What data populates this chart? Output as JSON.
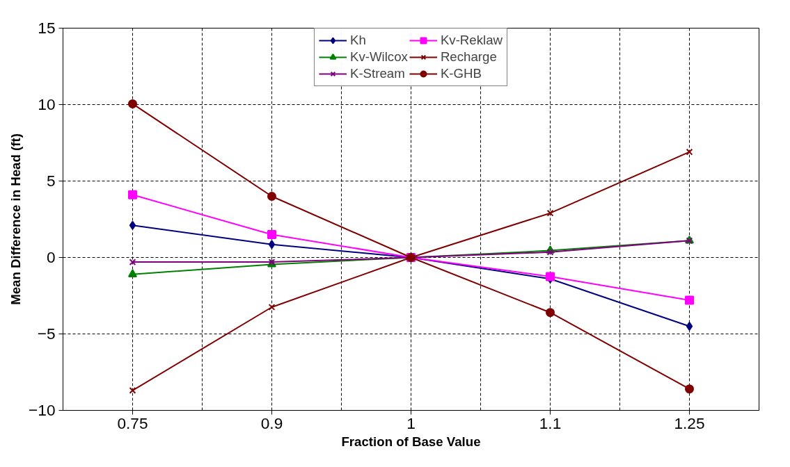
{
  "chart_data": {
    "type": "line",
    "xlabel": "Fraction of Base Value",
    "ylabel": "Mean Difference in Head (ft)",
    "categories": [
      "0.75",
      "0.9",
      "1",
      "1.1",
      "1.25"
    ],
    "ylim": [
      -10,
      15
    ],
    "yticks": [
      -10,
      -5,
      0,
      5,
      10,
      15
    ],
    "grid": true,
    "legend": "top",
    "series": [
      {
        "name": "Kh",
        "color": "#000080",
        "marker": "diamond",
        "values": [
          2.1,
          0.85,
          0,
          -1.4,
          -4.5
        ]
      },
      {
        "name": "Kv-Reklaw",
        "color": "#ff00ff",
        "marker": "square",
        "values": [
          4.1,
          1.5,
          0,
          -1.25,
          -2.8
        ]
      },
      {
        "name": "Kv-Wilcox",
        "color": "#008000",
        "marker": "triangle",
        "values": [
          -1.1,
          -0.45,
          0,
          0.45,
          1.1
        ]
      },
      {
        "name": "Recharge",
        "color": "#800000",
        "marker": "cross",
        "values": [
          -8.7,
          -3.25,
          0,
          2.9,
          6.9
        ]
      },
      {
        "name": "K-Stream",
        "color": "#800080",
        "marker": "cross",
        "values": [
          -0.3,
          -0.3,
          0,
          0.35,
          1.1
        ]
      },
      {
        "name": "K-GHB",
        "color": "#800000",
        "marker": "circle",
        "values": [
          10.05,
          4.0,
          0,
          -3.6,
          -8.6
        ]
      }
    ]
  }
}
